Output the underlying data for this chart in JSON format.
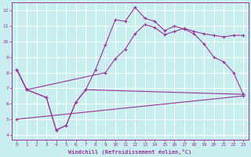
{
  "xlabel": "Windchill (Refroidissement éolien,°C)",
  "bg_color": "#c8eef0",
  "grid_color": "#ffffff",
  "line_color": "#993399",
  "xlim": [
    -0.5,
    23.5
  ],
  "ylim": [
    3.7,
    12.5
  ],
  "xticks": [
    0,
    1,
    2,
    3,
    4,
    5,
    6,
    7,
    8,
    9,
    10,
    11,
    12,
    13,
    14,
    15,
    16,
    17,
    18,
    19,
    20,
    21,
    22,
    23
  ],
  "yticks": [
    4,
    5,
    6,
    7,
    8,
    9,
    10,
    11,
    12
  ],
  "line1_x": [
    0,
    1,
    3,
    4,
    5,
    6,
    7,
    8,
    9,
    10,
    11,
    12,
    13,
    14,
    15,
    16,
    17,
    18,
    19,
    20,
    21,
    22,
    23
  ],
  "line1_y": [
    8.2,
    6.9,
    6.4,
    4.3,
    4.6,
    6.1,
    6.9,
    8.2,
    9.8,
    11.4,
    11.3,
    12.2,
    11.5,
    11.3,
    10.7,
    11.0,
    10.8,
    10.5,
    9.85,
    9.0,
    8.7,
    8.0,
    6.6
  ],
  "line2_x": [
    0,
    1,
    9,
    10,
    11,
    12,
    13,
    14,
    15,
    16,
    17,
    18,
    19,
    20,
    21,
    22,
    23
  ],
  "line2_y": [
    8.2,
    6.9,
    8.0,
    8.9,
    9.5,
    10.5,
    11.1,
    10.9,
    10.45,
    10.65,
    10.85,
    10.65,
    10.5,
    10.4,
    10.3,
    10.4,
    10.4
  ],
  "line3_x": [
    0,
    1,
    3,
    4,
    5,
    6,
    7,
    23
  ],
  "line3_y": [
    8.2,
    6.9,
    6.4,
    4.3,
    4.6,
    6.1,
    6.9,
    6.6
  ],
  "line4_x": [
    0,
    23
  ],
  "line4_y": [
    5.0,
    6.5
  ]
}
